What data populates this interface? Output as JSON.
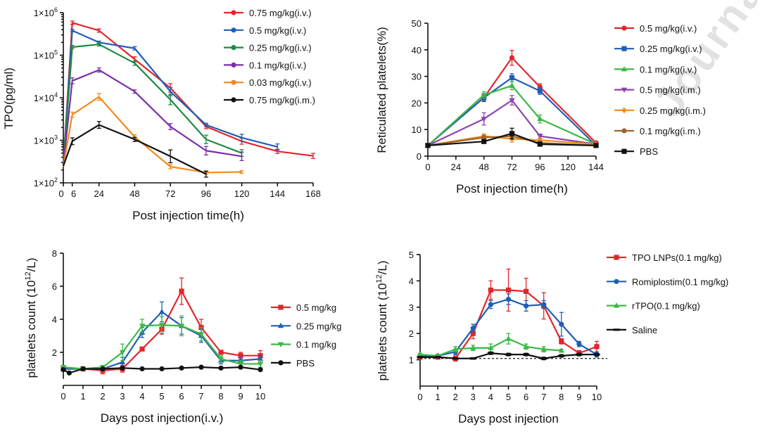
{
  "watermark": "Journal Pre-proof",
  "chart_data": [
    {
      "id": "tpo",
      "type": "line",
      "yscale": "log",
      "title": "",
      "xlabel": "Post injection time(h)",
      "ylabel": "TPO(pg/ml)",
      "xlim": [
        0,
        168
      ],
      "ylim": [
        100,
        1000000
      ],
      "xticks": [
        0,
        6,
        24,
        48,
        72,
        96,
        120,
        144,
        168
      ],
      "yticks": [
        100,
        1000,
        10000,
        100000,
        1000000
      ],
      "ytick_base": "1×10",
      "ytick_exps": [
        "2",
        "3",
        "4",
        "5",
        "6"
      ],
      "legend_position": "top-right",
      "series": [
        {
          "name": "0.75 mg/kg(i.v.)",
          "color": "#e2262b",
          "x": [
            0,
            6,
            24,
            48,
            72,
            96,
            120,
            144,
            168
          ],
          "y": [
            270,
            580000,
            380000,
            80000,
            17000,
            2100,
            950,
            550,
            430
          ],
          "err": [
            0,
            0.04,
            0.04,
            0.06,
            0.1,
            0.05,
            0.07,
            0.05,
            0.06
          ]
        },
        {
          "name": "0.5 mg/kg(i.v.)",
          "color": "#1f5eb5",
          "x": [
            0,
            6,
            24,
            48,
            72,
            96,
            120,
            144
          ],
          "y": [
            250,
            380000,
            200000,
            145000,
            14000,
            2300,
            1150,
            700
          ],
          "err": [
            0,
            0.03,
            0.03,
            0.04,
            0.1,
            0.04,
            0.08,
            0.07
          ]
        },
        {
          "name": "0.25 mg/kg(i.v.)",
          "color": "#1e8a44",
          "x": [
            0,
            6,
            24,
            48,
            72,
            96,
            120
          ],
          "y": [
            280,
            155000,
            180000,
            65000,
            9000,
            1050,
            500
          ],
          "err": [
            0,
            0.04,
            0.04,
            0.05,
            0.12,
            0.1,
            0.08
          ]
        },
        {
          "name": "0.1 mg/kg(i.v.)",
          "color": "#7a2fa8",
          "x": [
            0,
            6,
            24,
            48,
            72,
            96,
            120
          ],
          "y": [
            260,
            25000,
            45000,
            14000,
            2100,
            570,
            420
          ],
          "err": [
            0,
            0.07,
            0.05,
            0.04,
            0.07,
            0.1,
            0.1
          ]
        },
        {
          "name": "0.03 mg/kg(i.v.)",
          "color": "#f08a1d",
          "x": [
            0,
            6,
            24,
            48,
            72,
            96,
            120
          ],
          "y": [
            240,
            4000,
            10500,
            1200,
            240,
            175,
            180
          ],
          "err": [
            0,
            0.06,
            0.08,
            0.05,
            0.05,
            0.04,
            0.03
          ]
        },
        {
          "name": "0.75 mg/kg(i.m.)",
          "color": "#111111",
          "x": [
            0,
            6,
            24,
            48,
            72,
            96
          ],
          "y": [
            250,
            950,
            2300,
            1050,
            420,
            160
          ],
          "err": [
            0,
            0.08,
            0.08,
            0.05,
            0.15,
            0.07
          ]
        }
      ]
    },
    {
      "id": "retic",
      "type": "line",
      "yscale": "linear",
      "title": "",
      "xlabel": "Post injection time(h)",
      "ylabel": "Reticulated platelets(%)",
      "xlim": [
        0,
        144
      ],
      "ylim": [
        0,
        50
      ],
      "xticks": [
        0,
        24,
        48,
        72,
        96,
        120,
        144
      ],
      "yticks": [
        0,
        10,
        20,
        30,
        40,
        50
      ],
      "legend_position": "right",
      "series": [
        {
          "name": "0.5 mg/kg(i.v.)",
          "color": "#e2262b",
          "marker": "circle",
          "x": [
            0,
            48,
            72,
            96,
            144
          ],
          "y": [
            4,
            22,
            37,
            26,
            5
          ],
          "err": [
            0.3,
            1.2,
            2.8,
            1.2,
            0.6
          ]
        },
        {
          "name": "0.25 mg/kg(i.v.)",
          "color": "#1f5eb5",
          "marker": "square",
          "x": [
            0,
            48,
            72,
            96,
            144
          ],
          "y": [
            4,
            22,
            29.5,
            24.5,
            4
          ],
          "err": [
            0.3,
            1.5,
            1.5,
            1.3,
            0.4
          ]
        },
        {
          "name": "0.1 mg/kg(i.v.)",
          "color": "#3cb846",
          "marker": "triangle",
          "x": [
            0,
            48,
            72,
            96,
            144
          ],
          "y": [
            4,
            23,
            26.5,
            14,
            4.5
          ],
          "err": [
            0.3,
            1.2,
            1.5,
            1.5,
            0.4
          ]
        },
        {
          "name": "0.5 mg/kg(i.m.)",
          "color": "#8e44ad",
          "marker": "triangle-down",
          "x": [
            0,
            48,
            72,
            96,
            144
          ],
          "y": [
            4,
            14,
            21,
            7.5,
            4.5
          ],
          "err": [
            0.3,
            2.3,
            1.8,
            0.8,
            0.4
          ]
        },
        {
          "name": "0.25 mg/kg(i.m.)",
          "color": "#f08a1d",
          "marker": "diamond",
          "x": [
            0,
            48,
            72,
            96,
            144
          ],
          "y": [
            4,
            7.5,
            6.5,
            6,
            4.5
          ],
          "err": [
            0.3,
            0.8,
            1.2,
            0.6,
            0.4
          ]
        },
        {
          "name": "0.1 mg/kg(i.m.)",
          "color": "#a0642b",
          "marker": "circle",
          "x": [
            0,
            48,
            72,
            96,
            144
          ],
          "y": [
            4,
            7,
            7.5,
            5,
            4
          ],
          "err": [
            0.3,
            0.8,
            1.2,
            0.6,
            0.4
          ]
        },
        {
          "name": "PBS",
          "color": "#111111",
          "marker": "square",
          "x": [
            0,
            48,
            72,
            96,
            144
          ],
          "y": [
            4,
            5.5,
            8.5,
            4.5,
            4
          ],
          "err": [
            0.3,
            0.7,
            2.0,
            0.6,
            0.3
          ]
        }
      ]
    },
    {
      "id": "plt_iv",
      "type": "line",
      "yscale": "linear",
      "title": "",
      "xlabel": "Days post injection(i.v.)",
      "ylabel": "platelets count (10",
      "ylabel_sup": "12",
      "ylabel_tail": "/L)",
      "xlim": [
        0,
        10
      ],
      "ylim": [
        0,
        8
      ],
      "ymin_axis": 0.4,
      "xticks": [
        0,
        1,
        2,
        3,
        4,
        5,
        6,
        7,
        8,
        9,
        10
      ],
      "yticks": [
        2,
        4,
        6,
        8
      ],
      "legend_position": "right",
      "series": [
        {
          "name": "0.5 mg/kg",
          "color": "#e2262b",
          "marker": "square",
          "x": [
            0,
            1,
            2,
            3,
            4,
            5,
            6,
            7,
            8,
            9,
            10
          ],
          "y": [
            1.0,
            1.0,
            0.9,
            1.0,
            2.2,
            3.4,
            5.7,
            3.5,
            2.0,
            1.8,
            1.8
          ],
          "err": [
            0.1,
            0.1,
            0.2,
            0.2,
            0.1,
            0.3,
            0.8,
            0.5,
            0.1,
            0.2,
            0.3
          ]
        },
        {
          "name": "0.25 mg/kg",
          "color": "#1f5eb5",
          "marker": "triangle",
          "x": [
            0,
            1,
            2,
            3,
            4,
            5,
            6,
            7,
            8,
            9,
            10
          ],
          "y": [
            1.0,
            1.0,
            1.0,
            1.4,
            3.2,
            4.45,
            3.6,
            3.0,
            1.5,
            1.5,
            1.6
          ],
          "err": [
            0.1,
            0.1,
            0.1,
            0.3,
            0.3,
            0.6,
            0.5,
            0.4,
            0.2,
            0.2,
            0.2
          ]
        },
        {
          "name": "0.1 mg/kg",
          "color": "#3cb846",
          "marker": "triangle-down",
          "x": [
            0,
            1,
            2,
            3,
            4,
            5,
            6,
            7,
            8,
            9,
            10
          ],
          "y": [
            1.1,
            1.0,
            1.1,
            2.0,
            3.6,
            3.65,
            3.6,
            3.1,
            1.6,
            1.3,
            1.3
          ],
          "err": [
            0.1,
            0.1,
            0.1,
            0.5,
            0.4,
            0.5,
            0.6,
            0.4,
            0.2,
            0.2,
            0.2
          ]
        },
        {
          "name": "PBS",
          "color": "#111111",
          "marker": "circle",
          "x": [
            0,
            0.3,
            1,
            2,
            3,
            4,
            5,
            6,
            7,
            8,
            9,
            10
          ],
          "y": [
            0.95,
            0.75,
            1.0,
            1.0,
            1.05,
            1.0,
            1.0,
            1.05,
            1.1,
            1.05,
            1.1,
            0.95
          ],
          "err": [
            0.05,
            0.05,
            0.05,
            0.05,
            0.05,
            0.05,
            0.05,
            0.05,
            0.05,
            0.05,
            0.05,
            0.05
          ]
        }
      ]
    },
    {
      "id": "plt_compare",
      "type": "line",
      "yscale": "linear",
      "title": "",
      "xlabel": "Days post injection",
      "ylabel": "platelets count (10",
      "ylabel_sup": "12",
      "ylabel_tail": "/L)",
      "xlim": [
        0,
        10
      ],
      "ylim": [
        0,
        5
      ],
      "xticks": [
        0,
        1,
        2,
        3,
        4,
        5,
        6,
        7,
        8,
        9,
        10
      ],
      "yticks": [
        1,
        2,
        3,
        4,
        5
      ],
      "baseline": 1.05,
      "legend_position": "right",
      "series": [
        {
          "name": "TPO LNPs(0.1 mg/kg)",
          "color": "#e2262b",
          "marker": "square",
          "x": [
            0,
            1,
            2,
            3,
            4,
            5,
            6,
            7,
            8,
            9,
            10
          ],
          "y": [
            1.1,
            1.1,
            1.05,
            2.0,
            3.65,
            3.65,
            3.6,
            3.05,
            1.7,
            1.25,
            1.5
          ],
          "err": [
            0.05,
            0.05,
            0.1,
            0.2,
            0.35,
            0.8,
            0.5,
            0.5,
            0.1,
            0.1,
            0.2
          ]
        },
        {
          "name": "Romiplostim(0.1 mg/kg)",
          "color": "#1f5eb5",
          "marker": "circle",
          "x": [
            0,
            1,
            2,
            3,
            4,
            5,
            6,
            7,
            8,
            9,
            10
          ],
          "y": [
            1.15,
            1.15,
            1.3,
            2.2,
            3.1,
            3.3,
            3.05,
            3.1,
            2.35,
            1.6,
            1.2
          ],
          "err": [
            0.05,
            0.05,
            0.1,
            0.15,
            0.15,
            0.2,
            0.2,
            0.15,
            0.45,
            0.1,
            0.1
          ]
        },
        {
          "name": "rTPO(0.1 mg/kg)",
          "color": "#3cb846",
          "marker": "triangle",
          "x": [
            0,
            1,
            2,
            3,
            4,
            5,
            6,
            7,
            8
          ],
          "y": [
            1.2,
            1.15,
            1.4,
            1.45,
            1.45,
            1.8,
            1.5,
            1.4,
            1.35
          ],
          "err": [
            0.05,
            0.05,
            0.1,
            0.1,
            0.15,
            0.2,
            0.1,
            0.1,
            0.05
          ]
        },
        {
          "name": "Saline",
          "color": "#111111",
          "marker": "dash",
          "x": [
            0,
            1,
            2,
            3,
            4,
            5,
            6,
            7,
            8,
            9,
            10
          ],
          "y": [
            1.1,
            1.1,
            1.05,
            1.05,
            1.25,
            1.2,
            1.2,
            1.05,
            1.15,
            1.2,
            1.2
          ],
          "err": [
            0.03,
            0.03,
            0.03,
            0.03,
            0.05,
            0.05,
            0.05,
            0.05,
            0.05,
            0.05,
            0.05
          ]
        }
      ]
    }
  ]
}
